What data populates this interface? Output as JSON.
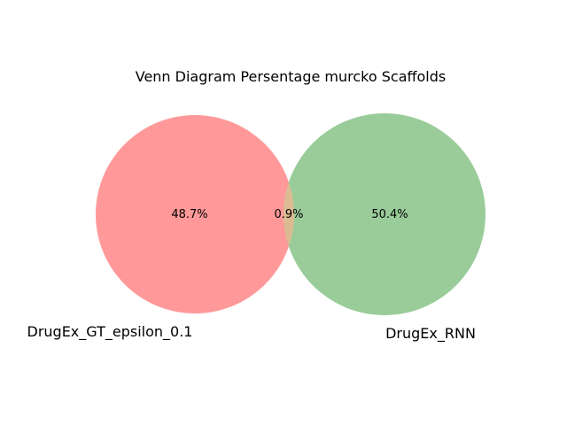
{
  "title": "Venn Diagram Persentage murcko Scaffolds",
  "sets": [
    {
      "name": "DrugEx_GT_epsilon_0.1",
      "color": "#ff9999",
      "only_label": "48.7%"
    },
    {
      "name": "DrugEx_RNN",
      "color": "#99cc99",
      "only_label": "50.4%"
    }
  ],
  "intersection": {
    "label": "0.9%",
    "color": "#dcbb93"
  }
}
